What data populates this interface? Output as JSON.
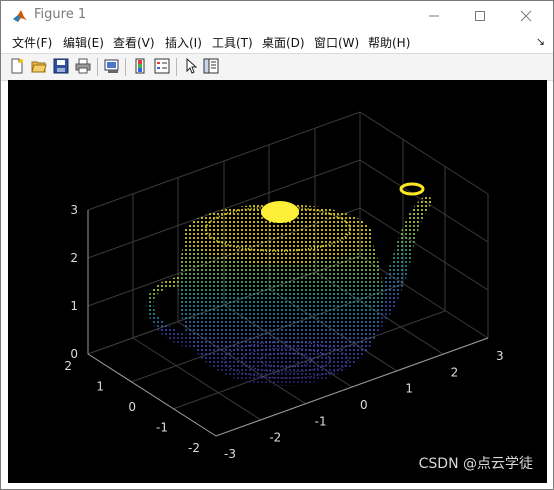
{
  "window": {
    "title": "Figure 1"
  },
  "menu": {
    "items": [
      "文件(F)",
      "编辑(E)",
      "查看(V)",
      "插入(I)",
      "工具(T)",
      "桌面(D)",
      "窗口(W)",
      "帮助(H)"
    ]
  },
  "toolbar": {
    "buttons": [
      "new-figure-icon",
      "open-file-icon",
      "save-icon",
      "print-icon",
      "link-plot-icon",
      "insert-colorbar-icon",
      "insert-legend-icon",
      "edit-plot-arrow-icon",
      "property-inspector-icon"
    ]
  },
  "plot": {
    "type": "3d point cloud (teapot)",
    "axes": {
      "z_ticks": [
        "0",
        "1",
        "2",
        "3"
      ],
      "x_ticks": [
        "-3",
        "-2",
        "-1",
        "0",
        "1",
        "2",
        "3"
      ],
      "y_ticks": [
        "-2",
        "-1",
        "0",
        "1",
        "2"
      ]
    },
    "colormap": [
      "#440154",
      "#3b52c3",
      "#21a39c",
      "#5ec962",
      "#fde725"
    ]
  },
  "watermark": "CSDN @点云学徒"
}
